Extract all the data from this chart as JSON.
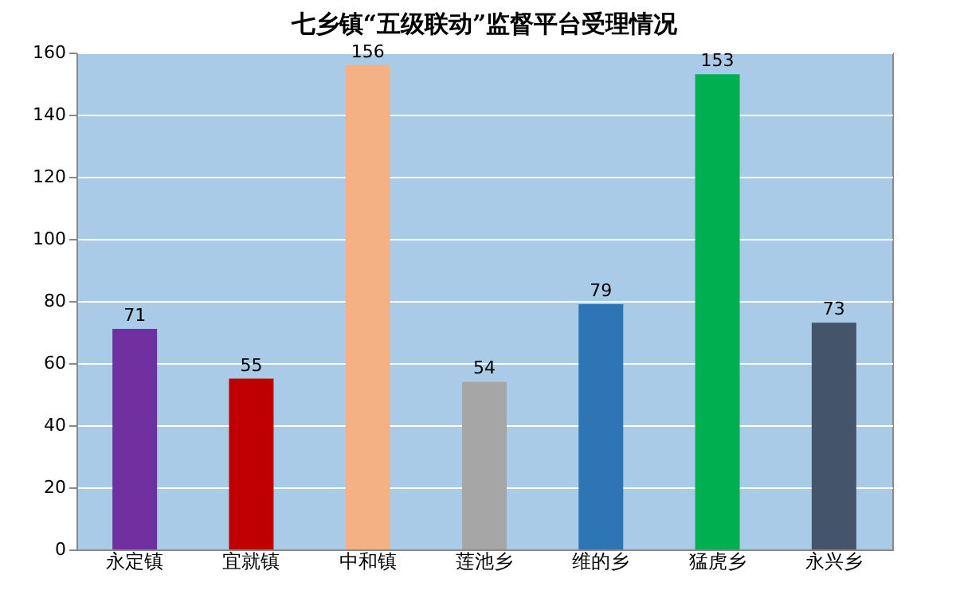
{
  "chart_data": {
    "type": "bar",
    "title": "七乡镇“五级联动”监督平台受理情况",
    "categories": [
      "永定镇",
      "宜就镇",
      "中和镇",
      "莲池乡",
      "维的乡",
      "猛虎乡",
      "永兴乡"
    ],
    "values": [
      71,
      55,
      156,
      54,
      79,
      153,
      73
    ],
    "colors": [
      "#7030a0",
      "#c00000",
      "#f4b183",
      "#a6a6a6",
      "#2e75b6",
      "#00b050",
      "#44546a"
    ],
    "ylim": [
      0,
      160
    ],
    "yticks": [
      0,
      20,
      40,
      60,
      80,
      100,
      120,
      140,
      160
    ],
    "grid": "y",
    "data_labels": true
  }
}
